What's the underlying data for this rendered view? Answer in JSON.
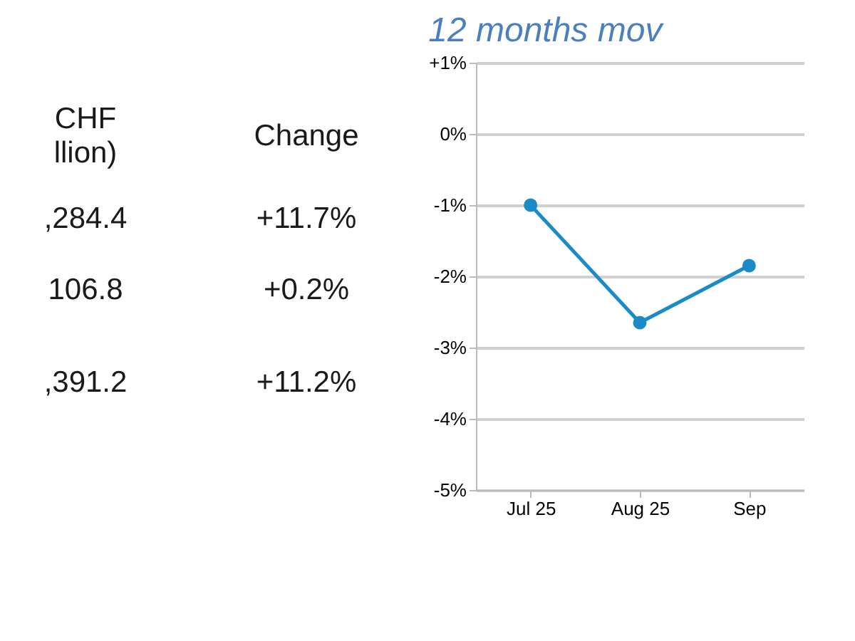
{
  "chart_data": [
    {
      "type": "other",
      "annotations": [
        "CHF",
        "llion)",
        "Change",
        ",284.4",
        "+11.7%",
        "106.8",
        "+0.2%",
        ",391.2",
        "+11.2%"
      ]
    },
    {
      "type": "line",
      "title": "12 months mov",
      "categories": [
        "Jul 25",
        "Aug 25",
        "Sep"
      ],
      "series": [
        {
          "color": "#1a8bc7",
          "values": [
            -1.0,
            -2.65,
            -1.85
          ]
        }
      ],
      "ylim": [
        -5,
        1
      ],
      "yticks": [
        {
          "value": 1,
          "label": "+1%"
        },
        {
          "value": 0,
          "label": "0%"
        },
        {
          "value": -1,
          "label": "-1%"
        },
        {
          "value": -2,
          "label": "-2%"
        },
        {
          "value": -3,
          "label": "-3%"
        },
        {
          "value": -4,
          "label": "-4%"
        },
        {
          "value": -5,
          "label": "-5%"
        }
      ],
      "grid": "y",
      "marker": "circle",
      "line_style": "solid"
    }
  ]
}
